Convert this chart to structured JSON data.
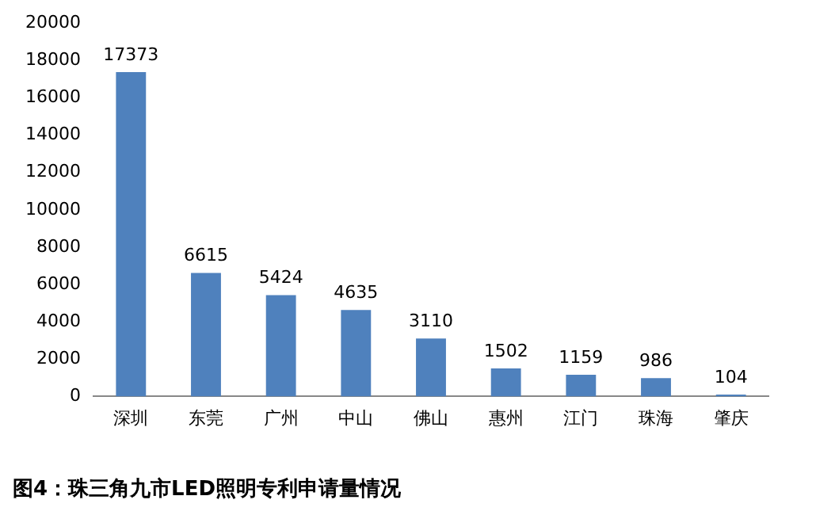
{
  "chart_data": {
    "type": "bar",
    "title": "图4：珠三角九市LED照明专利申请量情况",
    "categories": [
      "深圳",
      "东莞",
      "广州",
      "中山",
      "佛山",
      "惠州",
      "江门",
      "珠海",
      "肇庆"
    ],
    "values": [
      17373,
      6615,
      5424,
      4635,
      3110,
      1502,
      1159,
      986,
      104
    ],
    "color": "#4f81bd",
    "ylim": [
      0,
      20000
    ],
    "yticks": [
      0,
      2000,
      4000,
      6000,
      8000,
      10000,
      12000,
      14000,
      16000,
      18000,
      20000
    ],
    "grid": false,
    "legend": false,
    "data_labels": true
  }
}
